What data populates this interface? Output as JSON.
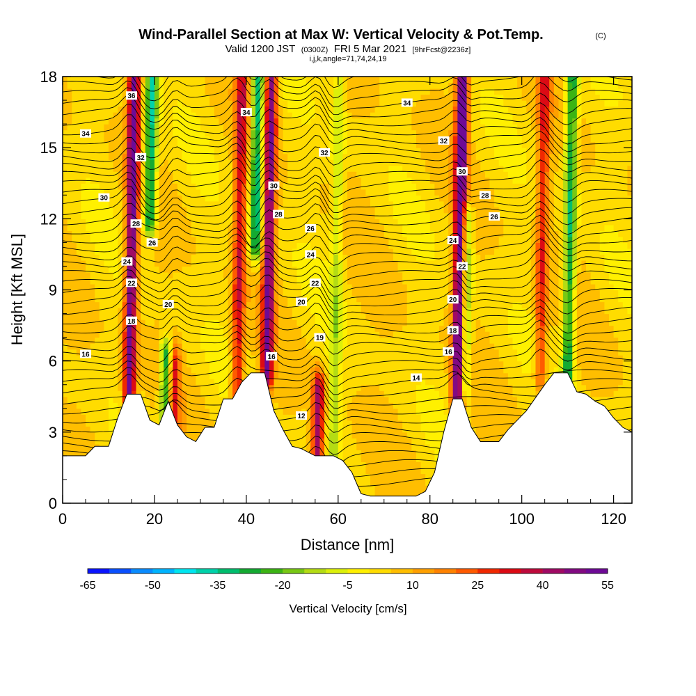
{
  "header": {
    "title": "Wind-Parallel Section at Max W: Vertical Velocity & Pot.Temp.",
    "copyright": "(C)",
    "valid_prefix": "Valid 1200 JST",
    "valid_utc": "(0300Z)",
    "valid_date": "FRI 5 Mar 2021",
    "forecast": "[9hrFcst@2236z]",
    "params": "i,j,k,angle=71,74,24,19"
  },
  "chart_data": {
    "type": "heatmap",
    "xlabel": "Distance [nm]",
    "ylabel": "Height [Kft MSL]",
    "xlim": [
      0,
      124
    ],
    "ylim": [
      0,
      18
    ],
    "x_ticks": [
      0,
      20,
      40,
      60,
      80,
      100,
      120
    ],
    "y_ticks": [
      0,
      3,
      6,
      9,
      12,
      15,
      18
    ],
    "colorbar": {
      "title": "Vertical Velocity [cm/s]",
      "labels": [
        "-65",
        "-50",
        "-35",
        "-20",
        "-5",
        "10",
        "25",
        "40",
        "55"
      ],
      "colors": [
        "#0a14ff",
        "#0a50ff",
        "#0a8cff",
        "#00b4ff",
        "#00e6f0",
        "#00d2aa",
        "#00be6e",
        "#14aa32",
        "#3cb414",
        "#78c814",
        "#b4dc14",
        "#dcf00a",
        "#fff000",
        "#ffdc00",
        "#ffbe00",
        "#ffa000",
        "#ff8200",
        "#ff5a00",
        "#f02800",
        "#dc0a14",
        "#be0a3c",
        "#a00a64",
        "#820a82",
        "#6e0a96"
      ]
    },
    "terrain_profile": [
      [
        0,
        2
      ],
      [
        5,
        2
      ],
      [
        7,
        2.4
      ],
      [
        10,
        2.4
      ],
      [
        12,
        3.6
      ],
      [
        14,
        4.6
      ],
      [
        17,
        4.6
      ],
      [
        19,
        3.5
      ],
      [
        21,
        3.3
      ],
      [
        23,
        4.3
      ],
      [
        25,
        3.3
      ],
      [
        27,
        2.8
      ],
      [
        29,
        2.6
      ],
      [
        31,
        3.2
      ],
      [
        33,
        3.2
      ],
      [
        35,
        4.4
      ],
      [
        37,
        4.4
      ],
      [
        39,
        5.1
      ],
      [
        41,
        5.5
      ],
      [
        44,
        5.5
      ],
      [
        46,
        3.9
      ],
      [
        48,
        3.1
      ],
      [
        50,
        2.4
      ],
      [
        52,
        2.3
      ],
      [
        55,
        2
      ],
      [
        59,
        2
      ],
      [
        61,
        1.8
      ],
      [
        63,
        1.3
      ],
      [
        65,
        0.4
      ],
      [
        67,
        0.3
      ],
      [
        77,
        0.3
      ],
      [
        79,
        0.5
      ],
      [
        81,
        1.3
      ],
      [
        83,
        3
      ],
      [
        85,
        4.4
      ],
      [
        87,
        4.4
      ],
      [
        89,
        3.2
      ],
      [
        91,
        2.6
      ],
      [
        95,
        2.6
      ],
      [
        97,
        3.1
      ],
      [
        101,
        3.9
      ],
      [
        105,
        5
      ],
      [
        107,
        5.5
      ],
      [
        110,
        5.5
      ],
      [
        112,
        4.7
      ],
      [
        114,
        4.6
      ],
      [
        116,
        4.3
      ],
      [
        118,
        4.1
      ],
      [
        120,
        3.6
      ],
      [
        122,
        3.2
      ],
      [
        124,
        3
      ]
    ],
    "updrafts": [
      {
        "x": 14.5,
        "y_low": 4.6,
        "y_high": 18,
        "value": 50
      },
      {
        "x": 24,
        "y_low": 3.5,
        "y_high": 6,
        "value": 30
      },
      {
        "x": 38,
        "y_low": 4.5,
        "y_high": 18,
        "value": 30
      },
      {
        "x": 44.5,
        "y_low": 5.5,
        "y_high": 18,
        "value": 45
      },
      {
        "x": 55.5,
        "y_low": 2,
        "y_high": 4.8,
        "value": 40
      },
      {
        "x": 86,
        "y_low": 4.4,
        "y_high": 18,
        "value": 55
      },
      {
        "x": 104,
        "y_low": 5.5,
        "y_high": 18,
        "value": 25
      }
    ],
    "downdrafts": [
      {
        "x": 19,
        "y_low": 12,
        "y_high": 18,
        "value": -40
      },
      {
        "x": 22.5,
        "y_low": 3.8,
        "y_high": 6.2,
        "value": -40
      },
      {
        "x": 42,
        "y_low": 11,
        "y_high": 18,
        "value": -40
      },
      {
        "x": 59,
        "y_low": 2,
        "y_high": 18,
        "value": -15
      },
      {
        "x": 87.5,
        "y_low": 5,
        "y_high": 12,
        "value": -25
      },
      {
        "x": 110,
        "y_low": 5.5,
        "y_high": 18,
        "value": -35
      }
    ],
    "theta_labels": [
      {
        "text": "36",
        "x": 15,
        "y": 17.2
      },
      {
        "text": "34",
        "x": 5,
        "y": 15.6
      },
      {
        "text": "34",
        "x": 40,
        "y": 16.5
      },
      {
        "text": "34",
        "x": 75,
        "y": 16.9
      },
      {
        "text": "32",
        "x": 17,
        "y": 14.6
      },
      {
        "text": "32",
        "x": 57,
        "y": 14.8
      },
      {
        "text": "32",
        "x": 83,
        "y": 15.3
      },
      {
        "text": "30",
        "x": 9,
        "y": 12.9
      },
      {
        "text": "30",
        "x": 46,
        "y": 13.4
      },
      {
        "text": "30",
        "x": 87,
        "y": 14
      },
      {
        "text": "28",
        "x": 16,
        "y": 11.8
      },
      {
        "text": "28",
        "x": 47,
        "y": 12.2
      },
      {
        "text": "28",
        "x": 92,
        "y": 13
      },
      {
        "text": "26",
        "x": 19.5,
        "y": 11
      },
      {
        "text": "26",
        "x": 54,
        "y": 11.6
      },
      {
        "text": "26",
        "x": 94,
        "y": 12.1
      },
      {
        "text": "24",
        "x": 14,
        "y": 10.2
      },
      {
        "text": "24",
        "x": 54,
        "y": 10.5
      },
      {
        "text": "24",
        "x": 85,
        "y": 11.1
      },
      {
        "text": "22",
        "x": 15,
        "y": 9.3
      },
      {
        "text": "22",
        "x": 55,
        "y": 9.3
      },
      {
        "text": "22",
        "x": 87,
        "y": 10
      },
      {
        "text": "20",
        "x": 23,
        "y": 8.4
      },
      {
        "text": "20",
        "x": 52,
        "y": 8.5
      },
      {
        "text": "20",
        "x": 85,
        "y": 8.6
      },
      {
        "text": "18",
        "x": 15,
        "y": 7.7
      },
      {
        "text": "19",
        "x": 56,
        "y": 7
      },
      {
        "text": "18",
        "x": 85,
        "y": 7.3
      },
      {
        "text": "16",
        "x": 5,
        "y": 6.3
      },
      {
        "text": "16",
        "x": 45.5,
        "y": 6.2
      },
      {
        "text": "16",
        "x": 84,
        "y": 6.4
      },
      {
        "text": "14",
        "x": 77,
        "y": 5.3
      },
      {
        "text": "12",
        "x": 52,
        "y": 3.7
      }
    ]
  }
}
